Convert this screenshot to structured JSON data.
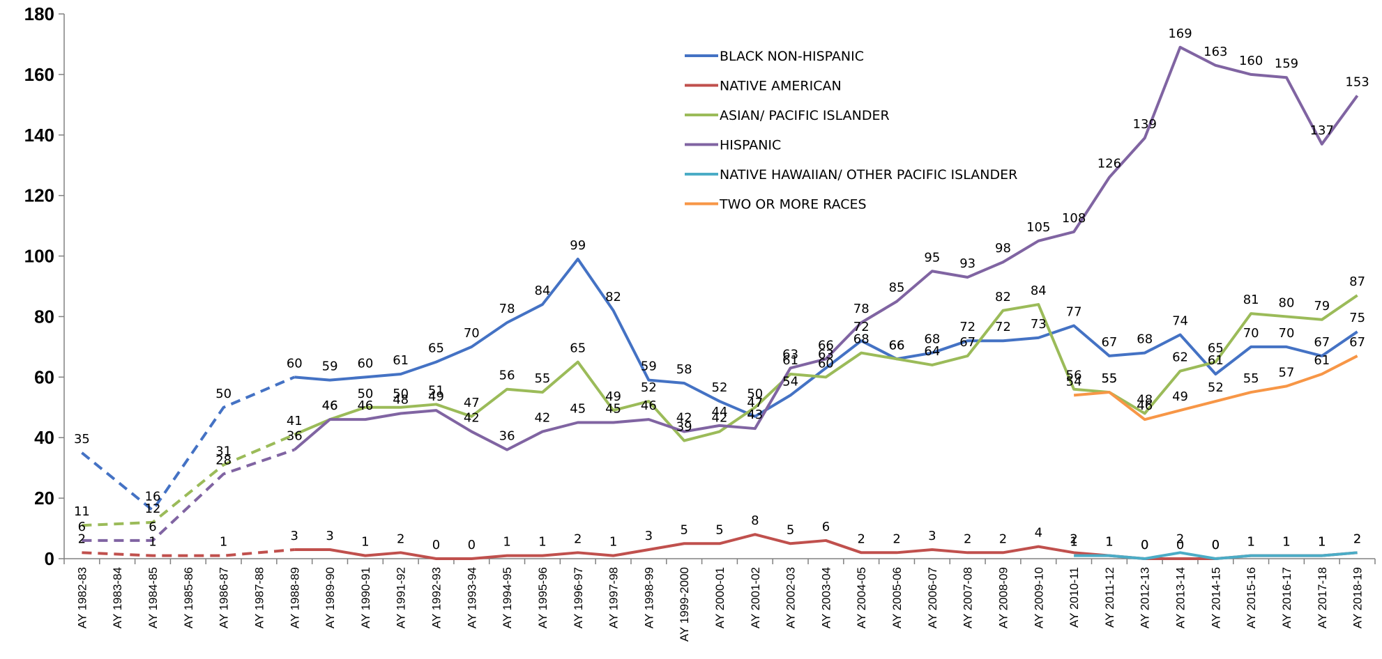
{
  "chart_data": {
    "type": "line",
    "title": "",
    "xlabel": "",
    "ylabel": "",
    "ylim": [
      0,
      180
    ],
    "yticks": [
      0,
      20,
      40,
      60,
      80,
      100,
      120,
      140,
      160,
      180
    ],
    "grid": false,
    "legend_position": "top-center",
    "categories": [
      "AY 1982-83",
      "AY 1983-84",
      "AY 1984-85",
      "AY 1985-86",
      "AY 1986-87",
      "AY 1987-88",
      "AY 1988-89",
      "AY 1989-90",
      "AY 1990-91",
      "AY 1991-92",
      "AY 1992-93",
      "AY 1993-94",
      "AY 1994-95",
      "AY 1995-96",
      "AY 1996-97",
      "AY 1997-98",
      "AY 1998-99",
      "AY 1999-2000",
      "AY 2000-01",
      "AY 2001-02",
      "AY 2002-03",
      "AY 2003-04",
      "AY 2004-05",
      "AY 2005-06",
      "AY 2006-07",
      "AY 2007-08",
      "AY 2008-09",
      "AY 2009-10",
      "AY 2010-11",
      "AY 2011-12",
      "AY 2012-13",
      "AY 2013-14",
      "AY 2014-15",
      "AY 2015-16",
      "AY 2016-17",
      "AY 2017-18",
      "AY 2018-19"
    ],
    "series": [
      {
        "name": "BLACK NON-HISPANIC",
        "color": "#4472C4",
        "values": [
          35,
          null,
          16,
          null,
          50,
          null,
          60,
          59,
          60,
          61,
          65,
          70,
          78,
          84,
          99,
          82,
          59,
          58,
          52,
          47,
          54,
          63,
          72,
          66,
          68,
          72,
          72,
          73,
          77,
          67,
          68,
          74,
          61,
          70,
          70,
          67,
          75
        ],
        "dashed_until": 6,
        "labels": [
          35,
          null,
          16,
          null,
          50,
          null,
          60,
          59,
          60,
          61,
          65,
          70,
          78,
          84,
          99,
          82,
          59,
          58,
          52,
          47,
          54,
          63,
          72,
          66,
          68,
          72,
          72,
          73,
          77,
          67,
          68,
          74,
          61,
          70,
          70,
          67,
          75
        ]
      },
      {
        "name": "NATIVE AMERICAN",
        "color": "#C0504D",
        "values": [
          2,
          null,
          1,
          null,
          1,
          null,
          3,
          3,
          1,
          2,
          0,
          0,
          1,
          1,
          2,
          1,
          3,
          5,
          5,
          8,
          5,
          6,
          2,
          2,
          3,
          2,
          2,
          4,
          2,
          1,
          0,
          0,
          0,
          1,
          1,
          1,
          2
        ],
        "dashed_until": 6,
        "labels": [
          2,
          null,
          1,
          null,
          1,
          null,
          3,
          3,
          1,
          2,
          0,
          0,
          1,
          1,
          2,
          1,
          3,
          5,
          5,
          8,
          5,
          6,
          2,
          2,
          3,
          2,
          2,
          4,
          2,
          1,
          0,
          0,
          0,
          1,
          1,
          1,
          2
        ]
      },
      {
        "name": "ASIAN/ PACIFIC ISLANDER",
        "color": "#9BBB59",
        "values": [
          11,
          null,
          12,
          null,
          31,
          null,
          41,
          46,
          50,
          50,
          51,
          47,
          56,
          55,
          65,
          49,
          52,
          39,
          42,
          50,
          61,
          60,
          68,
          66,
          64,
          67,
          82,
          84,
          56,
          55,
          48,
          62,
          65,
          81,
          80,
          79,
          87
        ],
        "dashed_until": 6,
        "labels": [
          11,
          null,
          12,
          null,
          31,
          null,
          41,
          46,
          50,
          50,
          51,
          47,
          56,
          55,
          65,
          49,
          52,
          39,
          42,
          50,
          61,
          60,
          68,
          66,
          64,
          67,
          82,
          84,
          56,
          55,
          48,
          62,
          65,
          81,
          80,
          79,
          87
        ]
      },
      {
        "name": "HISPANIC",
        "color": "#8064A2",
        "values": [
          6,
          null,
          6,
          null,
          28,
          null,
          36,
          46,
          46,
          48,
          49,
          42,
          36,
          42,
          45,
          45,
          46,
          42,
          44,
          43,
          63,
          66,
          78,
          85,
          95,
          93,
          98,
          105,
          108,
          126,
          139,
          169,
          163,
          160,
          159,
          137,
          153
        ],
        "dashed_until": 6,
        "labels": [
          6,
          null,
          6,
          null,
          28,
          null,
          36,
          46,
          46,
          48,
          49,
          42,
          36,
          42,
          45,
          45,
          46,
          42,
          44,
          43,
          63,
          66,
          78,
          85,
          95,
          93,
          98,
          105,
          108,
          126,
          139,
          169,
          163,
          160,
          159,
          137,
          153
        ]
      },
      {
        "name": "NATIVE HAWAIIAN/ OTHER PACIFIC ISLANDER",
        "color": "#4BACC6",
        "values": [
          null,
          null,
          null,
          null,
          null,
          null,
          null,
          null,
          null,
          null,
          null,
          null,
          null,
          null,
          null,
          null,
          null,
          null,
          null,
          null,
          null,
          null,
          null,
          null,
          null,
          null,
          null,
          null,
          1,
          1,
          0,
          2,
          0,
          1,
          1,
          1,
          2
        ],
        "dashed_until": -1,
        "labels": [
          null,
          null,
          null,
          null,
          null,
          null,
          null,
          null,
          null,
          null,
          null,
          null,
          null,
          null,
          null,
          null,
          null,
          null,
          null,
          null,
          null,
          null,
          null,
          null,
          null,
          null,
          null,
          null,
          1,
          1,
          0,
          2,
          0,
          1,
          1,
          1,
          2
        ]
      },
      {
        "name": "TWO OR MORE RACES",
        "color": "#F79646",
        "values": [
          null,
          null,
          null,
          null,
          null,
          null,
          null,
          null,
          null,
          null,
          null,
          null,
          null,
          null,
          null,
          null,
          null,
          null,
          null,
          null,
          null,
          null,
          null,
          null,
          null,
          null,
          null,
          null,
          54,
          55,
          46,
          49,
          52,
          55,
          57,
          61,
          67
        ],
        "dashed_until": -1,
        "labels": [
          null,
          null,
          null,
          null,
          null,
          null,
          null,
          null,
          null,
          null,
          null,
          null,
          null,
          null,
          null,
          null,
          null,
          null,
          null,
          null,
          null,
          null,
          null,
          null,
          null,
          null,
          null,
          null,
          54,
          55,
          46,
          49,
          52,
          55,
          57,
          61,
          67
        ]
      }
    ]
  }
}
